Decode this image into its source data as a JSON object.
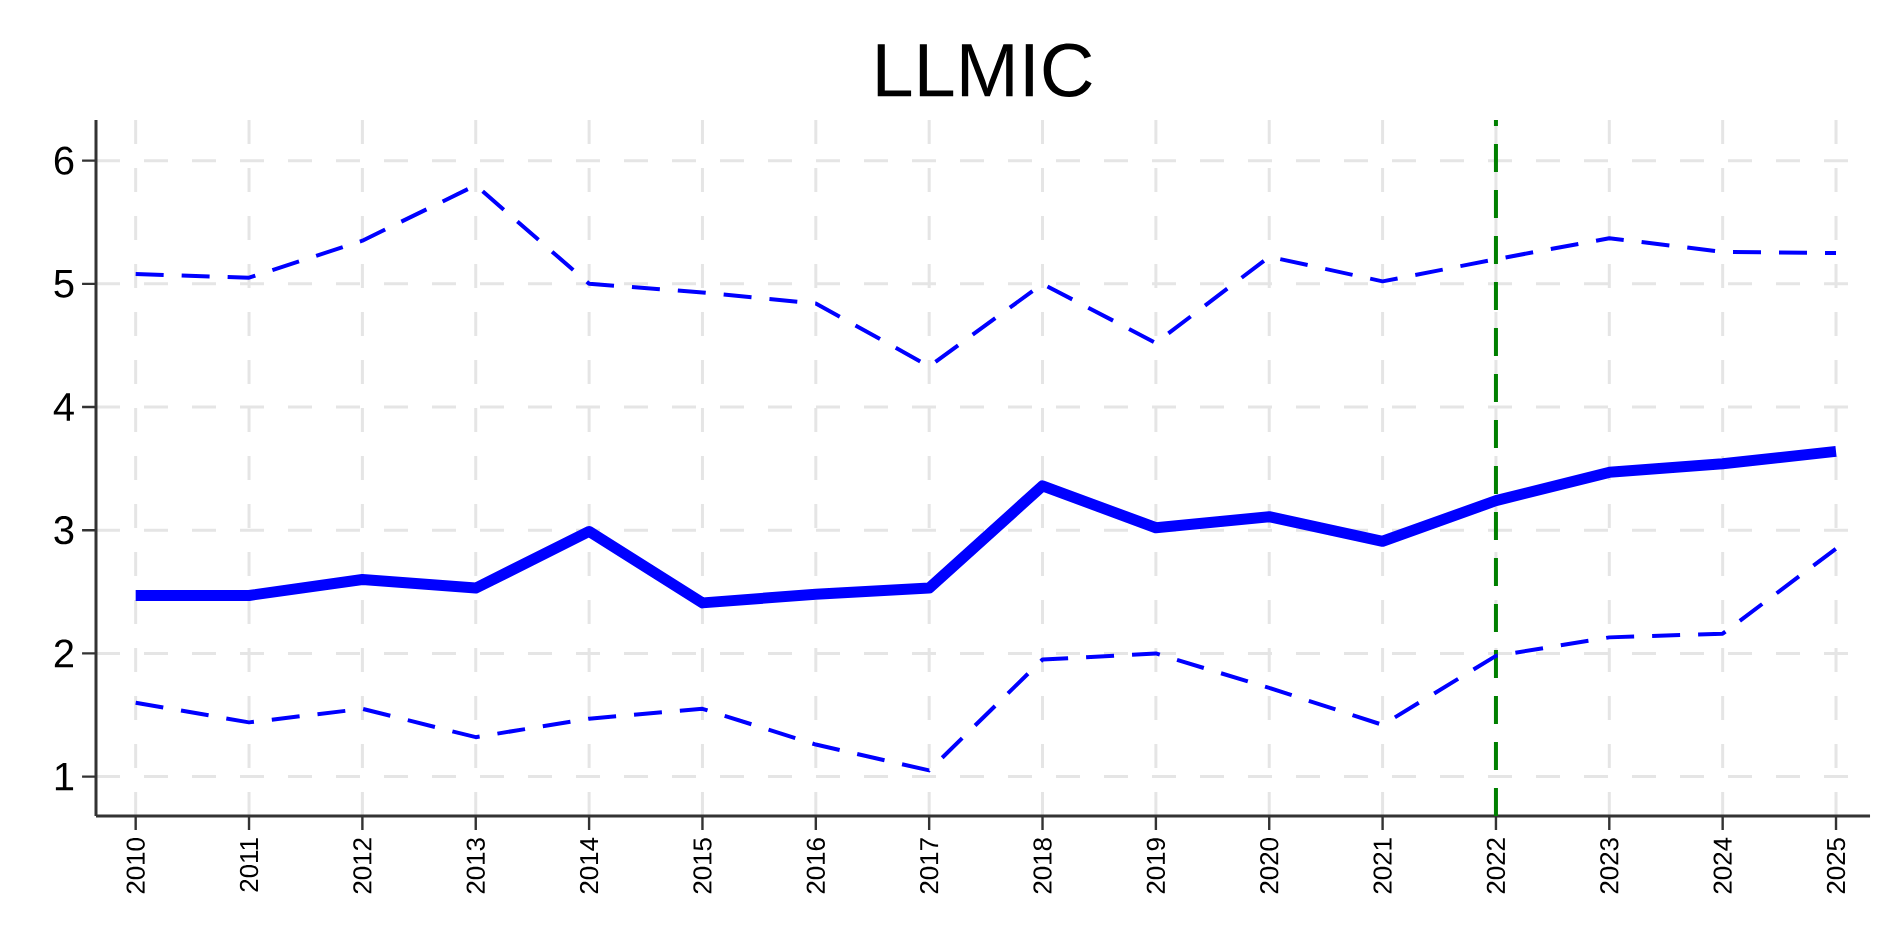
{
  "chart_data": {
    "type": "line",
    "title": "LLMIC",
    "x": [
      2010,
      2011,
      2012,
      2013,
      2014,
      2015,
      2016,
      2017,
      2018,
      2019,
      2020,
      2021,
      2022,
      2023,
      2024,
      2025
    ],
    "series": [
      {
        "color": "#0000ff",
        "line_style": "dashed",
        "values": [
          5.08,
          5.05,
          5.35,
          5.8,
          5.0,
          4.93,
          4.84,
          4.33,
          5.0,
          4.52,
          5.22,
          5.02,
          5.2,
          5.37,
          5.26,
          5.25
        ]
      },
      {
        "color": "#0000ff",
        "line_style": "solid",
        "values": [
          2.47,
          2.47,
          2.6,
          2.53,
          2.99,
          2.41,
          2.48,
          2.53,
          3.36,
          3.02,
          3.11,
          2.91,
          3.24,
          3.47,
          3.54,
          3.64
        ]
      },
      {
        "color": "#0000ff",
        "line_style": "dashed",
        "values": [
          1.6,
          1.44,
          1.55,
          1.32,
          1.47,
          1.55,
          1.26,
          1.05,
          1.95,
          2.0,
          1.72,
          1.42,
          1.98,
          2.13,
          2.16,
          2.85
        ]
      }
    ],
    "xlim": [
      2009.65,
      2025.3
    ],
    "ylim": [
      0.68,
      6.33
    ],
    "xticks": [
      2010,
      2011,
      2012,
      2013,
      2014,
      2015,
      2016,
      2017,
      2018,
      2019,
      2020,
      2021,
      2022,
      2023,
      2024,
      2025
    ],
    "yticks": [
      1,
      2,
      3,
      4,
      5,
      6
    ],
    "grid": true,
    "marker": "none",
    "ref_lines": [
      {
        "axis": "x",
        "value": 2022,
        "color": "#008000",
        "line_style": "dashed"
      }
    ]
  }
}
